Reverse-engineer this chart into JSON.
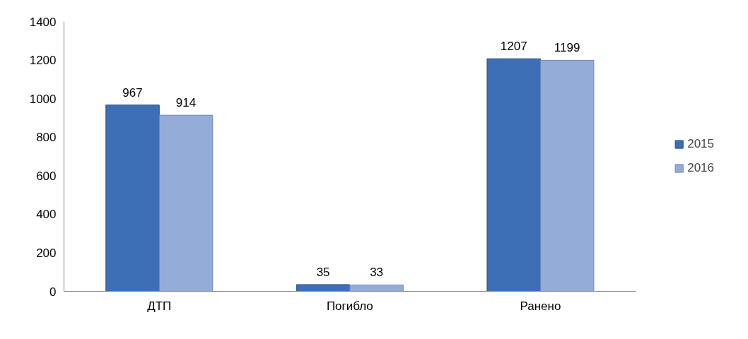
{
  "chart_data": {
    "type": "bar",
    "categories": [
      "ДТП",
      "Погибло",
      "Ранено"
    ],
    "series": [
      {
        "name": "2015",
        "color": "#3d6fb6",
        "values": [
          967,
          35,
          1207
        ]
      },
      {
        "name": "2016",
        "color": "#93acd8",
        "values": [
          914,
          33,
          1199
        ]
      }
    ],
    "ylim": [
      0,
      1400
    ],
    "yticks": [
      0,
      200,
      400,
      600,
      800,
      1000,
      1200,
      1400
    ],
    "grid": false,
    "legend": "right",
    "data_labels": true
  }
}
